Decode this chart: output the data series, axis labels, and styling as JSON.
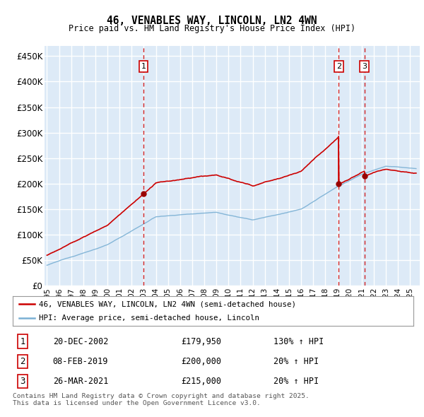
{
  "title": "46, VENABLES WAY, LINCOLN, LN2 4WN",
  "subtitle": "Price paid vs. HM Land Registry's House Price Index (HPI)",
  "ylabel_ticks": [
    "£0",
    "£50K",
    "£100K",
    "£150K",
    "£200K",
    "£250K",
    "£300K",
    "£350K",
    "£400K",
    "£450K"
  ],
  "ytick_values": [
    0,
    50000,
    100000,
    150000,
    200000,
    250000,
    300000,
    350000,
    400000,
    450000
  ],
  "ylim": [
    0,
    470000
  ],
  "xlim_start": 1994.8,
  "xlim_end": 2025.8,
  "sales": [
    {
      "number": 1,
      "date": "20-DEC-2002",
      "price": 179950,
      "year": 2002.97,
      "label_price": "£179,950",
      "label_pct": "130% ↑ HPI"
    },
    {
      "number": 2,
      "date": "08-FEB-2019",
      "price": 200000,
      "year": 2019.1,
      "label_price": "£200,000",
      "label_pct": "20% ↑ HPI"
    },
    {
      "number": 3,
      "date": "26-MAR-2021",
      "price": 215000,
      "year": 2021.23,
      "label_price": "£215,000",
      "label_pct": "20% ↑ HPI"
    }
  ],
  "legend_line1": "46, VENABLES WAY, LINCOLN, LN2 4WN (semi-detached house)",
  "legend_line2": "HPI: Average price, semi-detached house, Lincoln",
  "footer_line1": "Contains HM Land Registry data © Crown copyright and database right 2025.",
  "footer_line2": "This data is licensed under the Open Government Licence v3.0.",
  "red_color": "#cc0000",
  "blue_color": "#7ab0d4",
  "bg_color": "#ddeaf7",
  "grid_color": "#ffffff",
  "sale_dot_color": "#990000"
}
